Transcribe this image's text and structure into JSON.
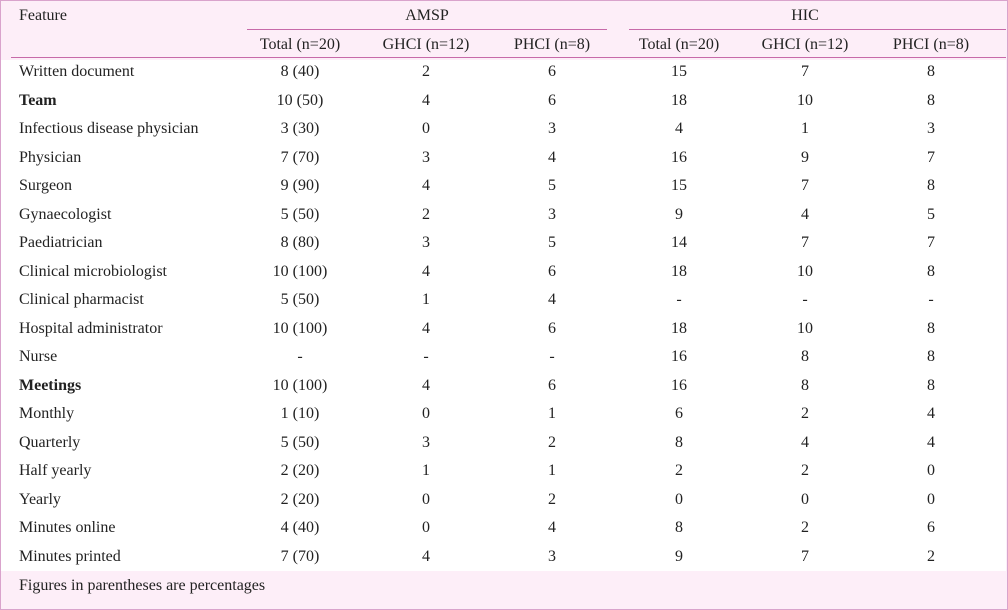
{
  "table": {
    "feature_header": "Feature",
    "group_headers": [
      "AMSP",
      "HIC"
    ],
    "sub_headers": [
      "Total (n=20)",
      "GHCI (n=12)",
      "PHCI (n=8)",
      "Total (n=20)",
      "GHCI (n=12)",
      "PHCI (n=8)"
    ],
    "rows": [
      {
        "feature": "Written document",
        "bold": false,
        "values": [
          "8 (40)",
          "2",
          "6",
          "15",
          "7",
          "8"
        ]
      },
      {
        "feature": "Team",
        "bold": true,
        "values": [
          "10 (50)",
          "4",
          "6",
          "18",
          "10",
          "8"
        ]
      },
      {
        "feature": "Infectious disease physician",
        "bold": false,
        "values": [
          "3 (30)",
          "0",
          "3",
          "4",
          "1",
          "3"
        ]
      },
      {
        "feature": "Physician",
        "bold": false,
        "values": [
          "7 (70)",
          "3",
          "4",
          "16",
          "9",
          "7"
        ]
      },
      {
        "feature": "Surgeon",
        "bold": false,
        "values": [
          "9 (90)",
          "4",
          "5",
          "15",
          "7",
          "8"
        ]
      },
      {
        "feature": "Gynaecologist",
        "bold": false,
        "values": [
          "5 (50)",
          "2",
          "3",
          "9",
          "4",
          "5"
        ]
      },
      {
        "feature": "Paediatrician",
        "bold": false,
        "values": [
          "8 (80)",
          "3",
          "5",
          "14",
          "7",
          "7"
        ]
      },
      {
        "feature": "Clinical microbiologist",
        "bold": false,
        "values": [
          "10 (100)",
          "4",
          "6",
          "18",
          "10",
          "8"
        ]
      },
      {
        "feature": "Clinical pharmacist",
        "bold": false,
        "values": [
          "5 (50)",
          "1",
          "4",
          "-",
          "-",
          "-"
        ]
      },
      {
        "feature": "Hospital administrator",
        "bold": false,
        "values": [
          "10 (100)",
          "4",
          "6",
          "18",
          "10",
          "8"
        ]
      },
      {
        "feature": "Nurse",
        "bold": false,
        "values": [
          "-",
          "-",
          "-",
          "16",
          "8",
          "8"
        ]
      },
      {
        "feature": "Meetings",
        "bold": true,
        "values": [
          "10 (100)",
          "4",
          "6",
          "16",
          "8",
          "8"
        ]
      },
      {
        "feature": "Monthly",
        "bold": false,
        "values": [
          "1 (10)",
          "0",
          "1",
          "6",
          "2",
          "4"
        ]
      },
      {
        "feature": "Quarterly",
        "bold": false,
        "values": [
          "5 (50)",
          "3",
          "2",
          "8",
          "4",
          "4"
        ]
      },
      {
        "feature": "Half yearly",
        "bold": false,
        "values": [
          "2 (20)",
          "1",
          "1",
          "2",
          "2",
          "0"
        ]
      },
      {
        "feature": "Yearly",
        "bold": false,
        "values": [
          "2 (20)",
          "0",
          "2",
          "0",
          "0",
          "0"
        ]
      },
      {
        "feature": "Minutes online",
        "bold": false,
        "values": [
          "4 (40)",
          "0",
          "4",
          "8",
          "2",
          "6"
        ]
      },
      {
        "feature": "Minutes printed",
        "bold": false,
        "values": [
          "7 (70)",
          "4",
          "3",
          "9",
          "7",
          "2"
        ]
      }
    ],
    "footnote": "Figures in parentheses are percentages"
  }
}
